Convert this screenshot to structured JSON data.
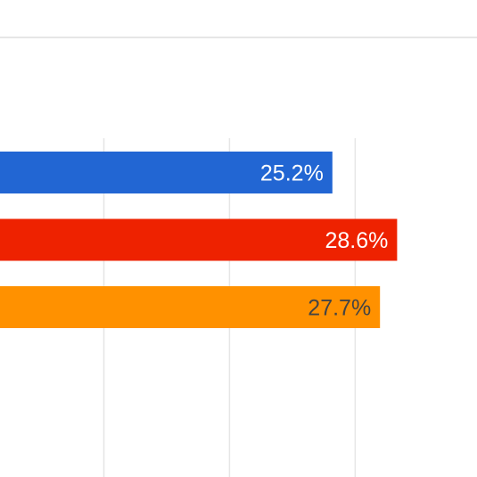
{
  "chart_data": {
    "type": "bar",
    "orientation": "horizontal",
    "grid": true,
    "series": [
      {
        "value": 25.2,
        "label": "25.2%",
        "color": "#2266d3",
        "label_color": "#ffffff"
      },
      {
        "value": 28.6,
        "label": "28.6%",
        "color": "#ee2200",
        "label_color": "#ffffff"
      },
      {
        "value": 27.7,
        "label": "27.7%",
        "color": "#ff9100",
        "label_color": "#444444"
      }
    ]
  }
}
